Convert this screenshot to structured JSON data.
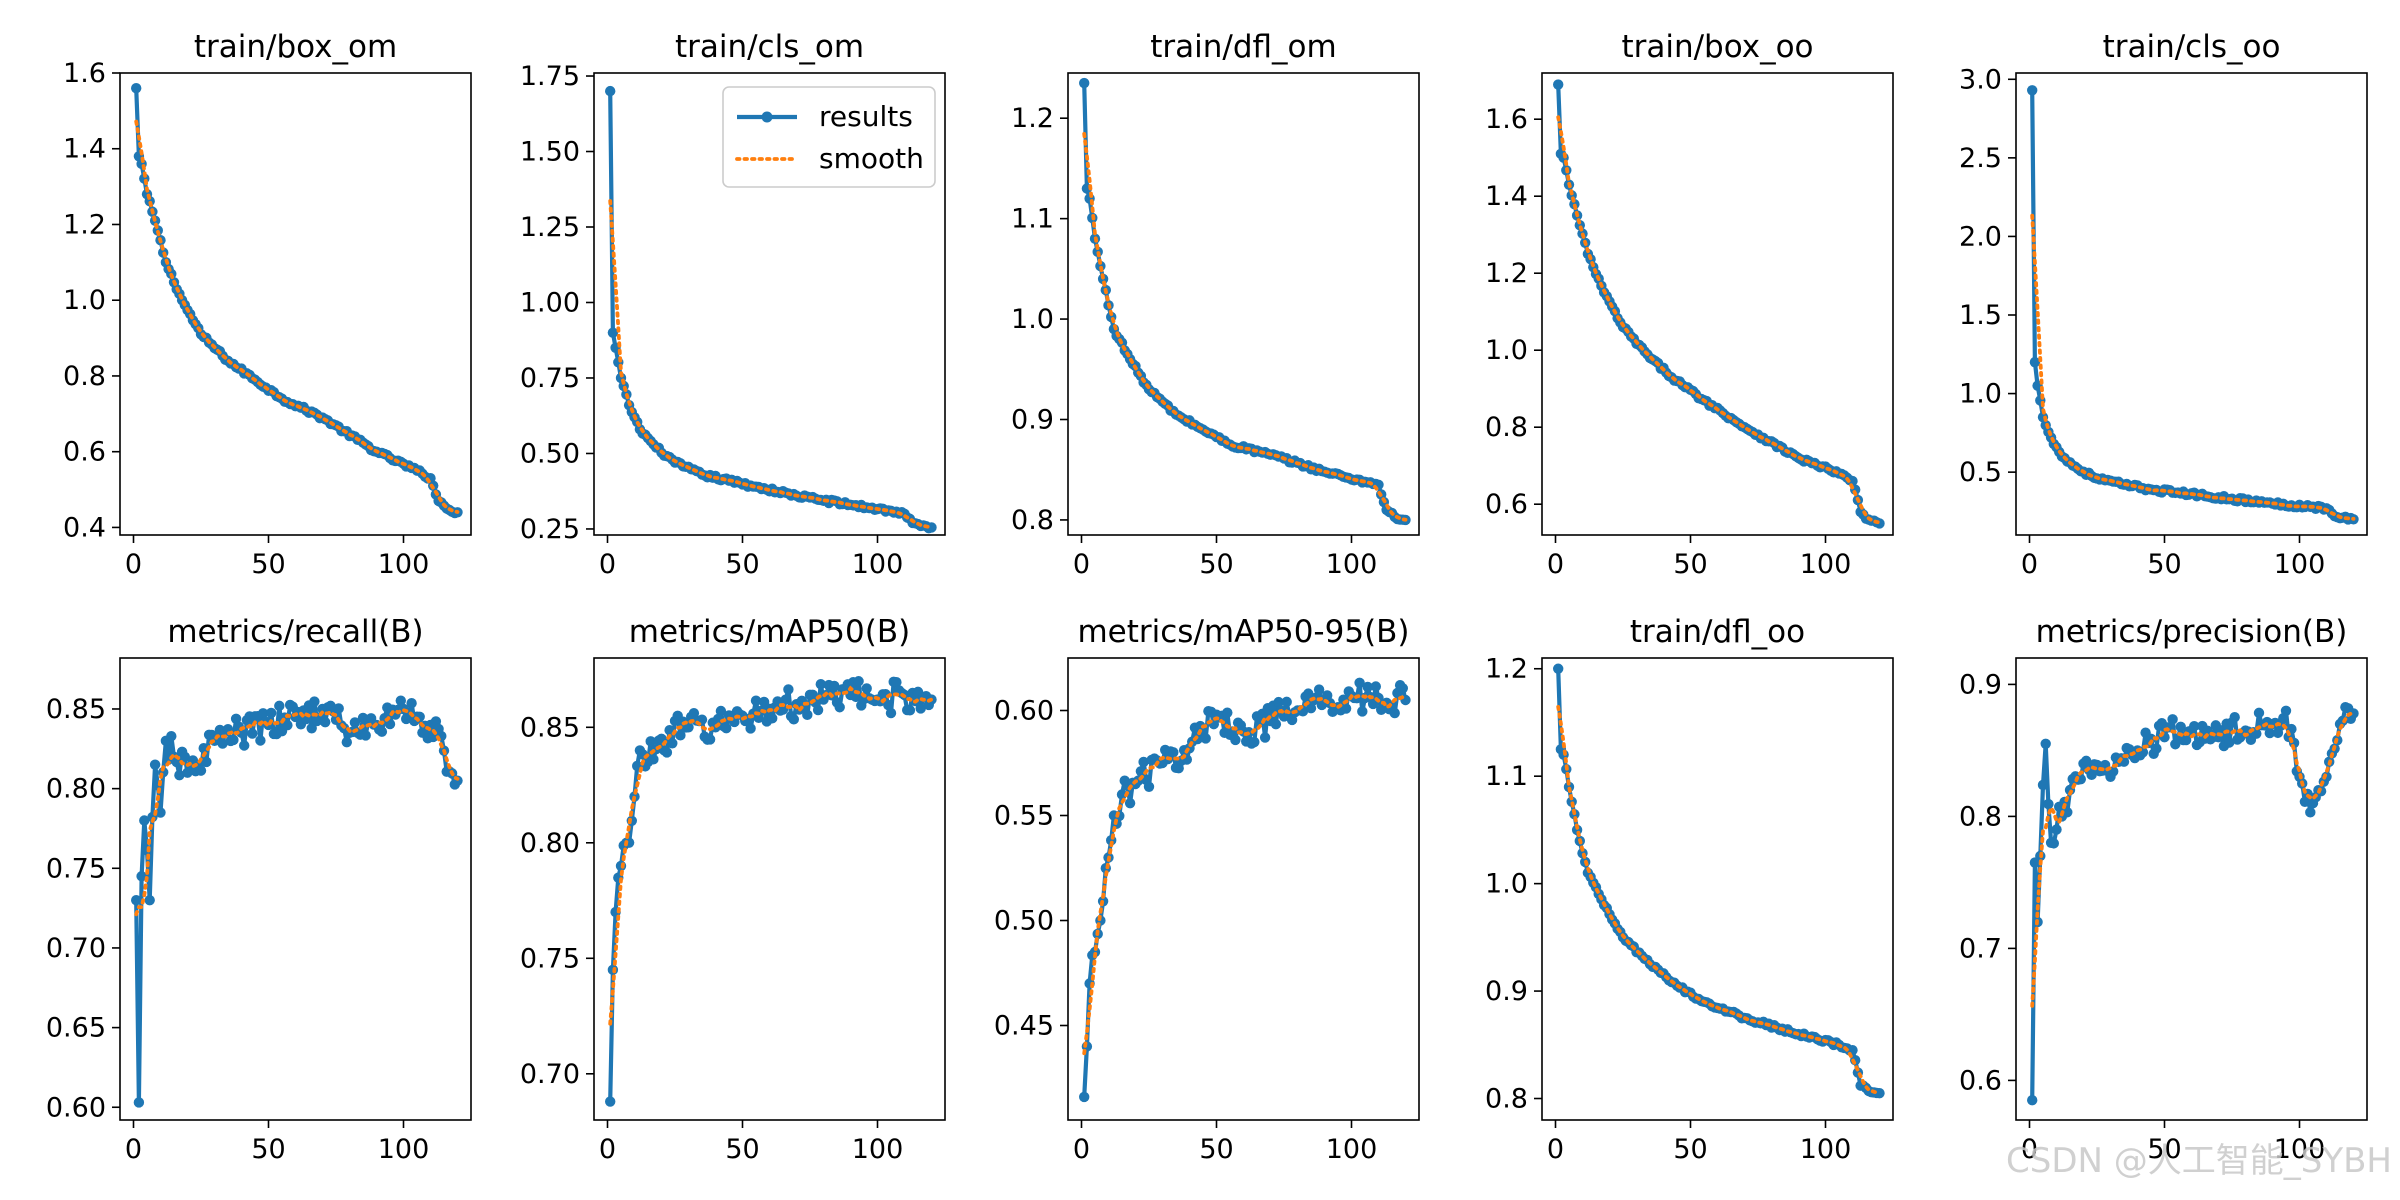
{
  "figure": {
    "watermark": "CSDN @人工智能_SYBH"
  },
  "colors": {
    "results": "#1f77b4",
    "smooth": "#ff7f0e",
    "axis": "#000000"
  },
  "legend": {
    "placement": "upper-right of train/cls_om",
    "entries": [
      "results",
      "smooth"
    ]
  },
  "chart_data": [
    {
      "type": "line",
      "title": "train/box_om",
      "xlim": [
        -5,
        125
      ],
      "ylim": [
        0.38,
        1.6
      ],
      "xticks": [
        0,
        50,
        100
      ],
      "xtick_labels": [
        "0",
        "50",
        "100"
      ],
      "yticks": [
        0.4,
        0.6,
        0.8,
        1.0,
        1.2,
        1.4,
        1.6
      ],
      "ytick_labels": [
        "0.4",
        "0.6",
        "0.8",
        "1.0",
        "1.2",
        "1.4",
        "1.6"
      ],
      "series": [
        {
          "name": "results",
          "key_x": [
            1,
            2,
            3,
            5,
            8,
            12,
            18,
            25,
            35,
            45,
            55,
            70,
            90,
            105,
            110,
            113,
            116,
            120
          ],
          "key_y": [
            1.56,
            1.38,
            1.36,
            1.28,
            1.21,
            1.1,
            1.0,
            0.91,
            0.84,
            0.79,
            0.74,
            0.69,
            0.6,
            0.55,
            0.53,
            0.47,
            0.45,
            0.44
          ]
        },
        {
          "name": "smooth",
          "derived_from": "results"
        }
      ],
      "legend": false
    },
    {
      "type": "line",
      "title": "train/cls_om",
      "xlim": [
        -5,
        125
      ],
      "ylim": [
        0.23,
        1.76
      ],
      "xticks": [
        0,
        50,
        100
      ],
      "xtick_labels": [
        "0",
        "50",
        "100"
      ],
      "yticks": [
        0.25,
        0.5,
        0.75,
        1.0,
        1.25,
        1.5,
        1.75
      ],
      "ytick_labels": [
        "0.25",
        "0.50",
        "0.75",
        "1.00",
        "1.25",
        "1.50",
        "1.75"
      ],
      "series": [
        {
          "name": "results",
          "key_x": [
            1,
            2,
            3,
            5,
            8,
            12,
            18,
            25,
            35,
            45,
            55,
            70,
            90,
            105,
            110,
            113,
            116,
            120
          ],
          "key_y": [
            1.7,
            0.9,
            0.85,
            0.75,
            0.66,
            0.58,
            0.52,
            0.47,
            0.43,
            0.41,
            0.39,
            0.36,
            0.33,
            0.31,
            0.3,
            0.27,
            0.26,
            0.255
          ]
        },
        {
          "name": "smooth",
          "derived_from": "results"
        }
      ],
      "legend": true
    },
    {
      "type": "line",
      "title": "train/dfl_om",
      "xlim": [
        -5,
        125
      ],
      "ylim": [
        0.785,
        1.245
      ],
      "xticks": [
        0,
        50,
        100
      ],
      "xtick_labels": [
        "0",
        "50",
        "100"
      ],
      "yticks": [
        0.8,
        0.9,
        1.0,
        1.1,
        1.2
      ],
      "ytick_labels": [
        "0.8",
        "0.9",
        "1.0",
        "1.1",
        "1.2"
      ],
      "series": [
        {
          "name": "results",
          "key_x": [
            1,
            2,
            3,
            5,
            8,
            12,
            18,
            25,
            35,
            45,
            55,
            70,
            90,
            105,
            110,
            113,
            116,
            120
          ],
          "key_y": [
            1.235,
            1.13,
            1.12,
            1.08,
            1.04,
            0.99,
            0.96,
            0.93,
            0.905,
            0.89,
            0.875,
            0.865,
            0.848,
            0.838,
            0.835,
            0.81,
            0.803,
            0.8
          ]
        },
        {
          "name": "smooth",
          "derived_from": "results"
        }
      ],
      "legend": false
    },
    {
      "type": "line",
      "title": "train/box_oo",
      "xlim": [
        -5,
        125
      ],
      "ylim": [
        0.52,
        1.72
      ],
      "xticks": [
        0,
        50,
        100
      ],
      "xtick_labels": [
        "0",
        "50",
        "100"
      ],
      "yticks": [
        0.6,
        0.8,
        1.0,
        1.2,
        1.4,
        1.6
      ],
      "ytick_labels": [
        "0.6",
        "0.8",
        "1.0",
        "1.2",
        "1.4",
        "1.6"
      ],
      "series": [
        {
          "name": "results",
          "key_x": [
            1,
            2,
            3,
            5,
            8,
            12,
            18,
            25,
            35,
            45,
            55,
            70,
            90,
            105,
            110,
            113,
            116,
            120
          ],
          "key_y": [
            1.69,
            1.51,
            1.5,
            1.43,
            1.35,
            1.25,
            1.15,
            1.06,
            0.98,
            0.92,
            0.87,
            0.8,
            0.72,
            0.68,
            0.66,
            0.58,
            0.56,
            0.55
          ]
        },
        {
          "name": "smooth",
          "derived_from": "results"
        }
      ],
      "legend": false
    },
    {
      "type": "line",
      "title": "train/cls_oo",
      "xlim": [
        -5,
        125
      ],
      "ylim": [
        0.1,
        3.04
      ],
      "xticks": [
        0,
        50,
        100
      ],
      "xtick_labels": [
        "0",
        "50",
        "100"
      ],
      "yticks": [
        0.5,
        1.0,
        1.5,
        2.0,
        2.5,
        3.0
      ],
      "ytick_labels": [
        "0.5",
        "1.0",
        "1.5",
        "2.0",
        "2.5",
        "3.0"
      ],
      "series": [
        {
          "name": "results",
          "key_x": [
            1,
            2,
            3,
            5,
            8,
            12,
            18,
            25,
            35,
            45,
            55,
            70,
            90,
            105,
            110,
            113,
            116,
            120
          ],
          "key_y": [
            2.93,
            1.2,
            1.05,
            0.85,
            0.72,
            0.6,
            0.52,
            0.46,
            0.42,
            0.39,
            0.37,
            0.34,
            0.3,
            0.28,
            0.27,
            0.22,
            0.21,
            0.2
          ]
        },
        {
          "name": "smooth",
          "derived_from": "results"
        }
      ],
      "legend": false
    },
    {
      "type": "line",
      "title": "metrics/recall(B)",
      "xlim": [
        -5,
        125
      ],
      "ylim": [
        0.592,
        0.882
      ],
      "xticks": [
        0,
        50,
        100
      ],
      "xtick_labels": [
        "0",
        "50",
        "100"
      ],
      "yticks": [
        0.6,
        0.65,
        0.7,
        0.75,
        0.8,
        0.85
      ],
      "ytick_labels": [
        "0.60",
        "0.65",
        "0.70",
        "0.75",
        "0.80",
        "0.85"
      ],
      "series": [
        {
          "name": "results",
          "key_x": [
            1,
            2,
            3,
            4,
            6,
            8,
            10,
            12,
            15,
            20,
            30,
            40,
            50,
            60,
            70,
            80,
            90,
            100,
            110,
            120
          ],
          "key_y": [
            0.73,
            0.603,
            0.745,
            0.78,
            0.73,
            0.815,
            0.785,
            0.83,
            0.82,
            0.81,
            0.83,
            0.835,
            0.84,
            0.845,
            0.85,
            0.835,
            0.84,
            0.85,
            0.84,
            0.805
          ]
        },
        {
          "name": "smooth",
          "derived_from": "results"
        }
      ],
      "legend": false
    },
    {
      "type": "line",
      "title": "metrics/mAP50(B)",
      "xlim": [
        -5,
        125
      ],
      "ylim": [
        0.68,
        0.88
      ],
      "xticks": [
        0,
        50,
        100
      ],
      "xtick_labels": [
        "0",
        "50",
        "100"
      ],
      "yticks": [
        0.7,
        0.75,
        0.8,
        0.85
      ],
      "ytick_labels": [
        "0.70",
        "0.75",
        "0.80",
        "0.85"
      ],
      "series": [
        {
          "name": "results",
          "key_x": [
            1,
            2,
            3,
            5,
            7,
            10,
            12,
            15,
            20,
            30,
            40,
            50,
            60,
            70,
            80,
            90,
            100,
            110,
            120
          ],
          "key_y": [
            0.688,
            0.745,
            0.77,
            0.79,
            0.8,
            0.82,
            0.84,
            0.835,
            0.845,
            0.85,
            0.85,
            0.855,
            0.858,
            0.86,
            0.862,
            0.864,
            0.862,
            0.864,
            0.862
          ]
        },
        {
          "name": "smooth",
          "derived_from": "results"
        }
      ],
      "legend": false
    },
    {
      "type": "line",
      "title": "metrics/mAP50-95(B)",
      "xlim": [
        -5,
        125
      ],
      "ylim": [
        0.405,
        0.625
      ],
      "xticks": [
        0,
        50,
        100
      ],
      "xtick_labels": [
        "0",
        "50",
        "100"
      ],
      "yticks": [
        0.45,
        0.5,
        0.55,
        0.6
      ],
      "ytick_labels": [
        "0.45",
        "0.50",
        "0.55",
        "0.60"
      ],
      "series": [
        {
          "name": "results",
          "key_x": [
            1,
            2,
            3,
            5,
            7,
            10,
            12,
            15,
            20,
            30,
            40,
            50,
            60,
            70,
            80,
            90,
            100,
            110,
            120
          ],
          "key_y": [
            0.416,
            0.44,
            0.47,
            0.485,
            0.5,
            0.53,
            0.55,
            0.56,
            0.565,
            0.575,
            0.582,
            0.598,
            0.59,
            0.595,
            0.6,
            0.605,
            0.607,
            0.606,
            0.605
          ]
        },
        {
          "name": "smooth",
          "derived_from": "results"
        }
      ],
      "legend": false
    },
    {
      "type": "line",
      "title": "train/dfl_oo",
      "xlim": [
        -5,
        125
      ],
      "ylim": [
        0.78,
        1.21
      ],
      "xticks": [
        0,
        50,
        100
      ],
      "xtick_labels": [
        "0",
        "50",
        "100"
      ],
      "yticks": [
        0.8,
        0.9,
        1.0,
        1.1,
        1.2
      ],
      "ytick_labels": [
        "0.8",
        "0.9",
        "1.0",
        "1.1",
        "1.2"
      ],
      "series": [
        {
          "name": "results",
          "key_x": [
            1,
            2,
            3,
            5,
            8,
            12,
            18,
            25,
            35,
            45,
            55,
            70,
            90,
            105,
            110,
            113,
            116,
            120
          ],
          "key_y": [
            1.2,
            1.125,
            1.12,
            1.09,
            1.05,
            1.01,
            0.98,
            0.95,
            0.925,
            0.905,
            0.89,
            0.875,
            0.86,
            0.85,
            0.845,
            0.812,
            0.807,
            0.805
          ]
        },
        {
          "name": "smooth",
          "derived_from": "results"
        }
      ],
      "legend": false
    },
    {
      "type": "line",
      "title": "metrics/precision(B)",
      "xlim": [
        -5,
        125
      ],
      "ylim": [
        0.57,
        0.92
      ],
      "xticks": [
        0,
        50,
        100
      ],
      "xtick_labels": [
        "0",
        "50",
        "100"
      ],
      "yticks": [
        0.6,
        0.7,
        0.8,
        0.9
      ],
      "ytick_labels": [
        "0.6",
        "0.7",
        "0.8",
        "0.9"
      ],
      "series": [
        {
          "name": "results",
          "key_x": [
            1,
            2,
            3,
            4,
            6,
            8,
            10,
            12,
            15,
            20,
            30,
            40,
            50,
            60,
            70,
            80,
            90,
            95,
            100,
            105,
            110,
            115,
            120
          ],
          "key_y": [
            0.585,
            0.765,
            0.72,
            0.77,
            0.855,
            0.78,
            0.79,
            0.8,
            0.82,
            0.84,
            0.83,
            0.85,
            0.86,
            0.865,
            0.86,
            0.865,
            0.87,
            0.88,
            0.83,
            0.81,
            0.83,
            0.87,
            0.878
          ]
        },
        {
          "name": "smooth",
          "derived_from": "results"
        }
      ],
      "legend": false
    }
  ]
}
